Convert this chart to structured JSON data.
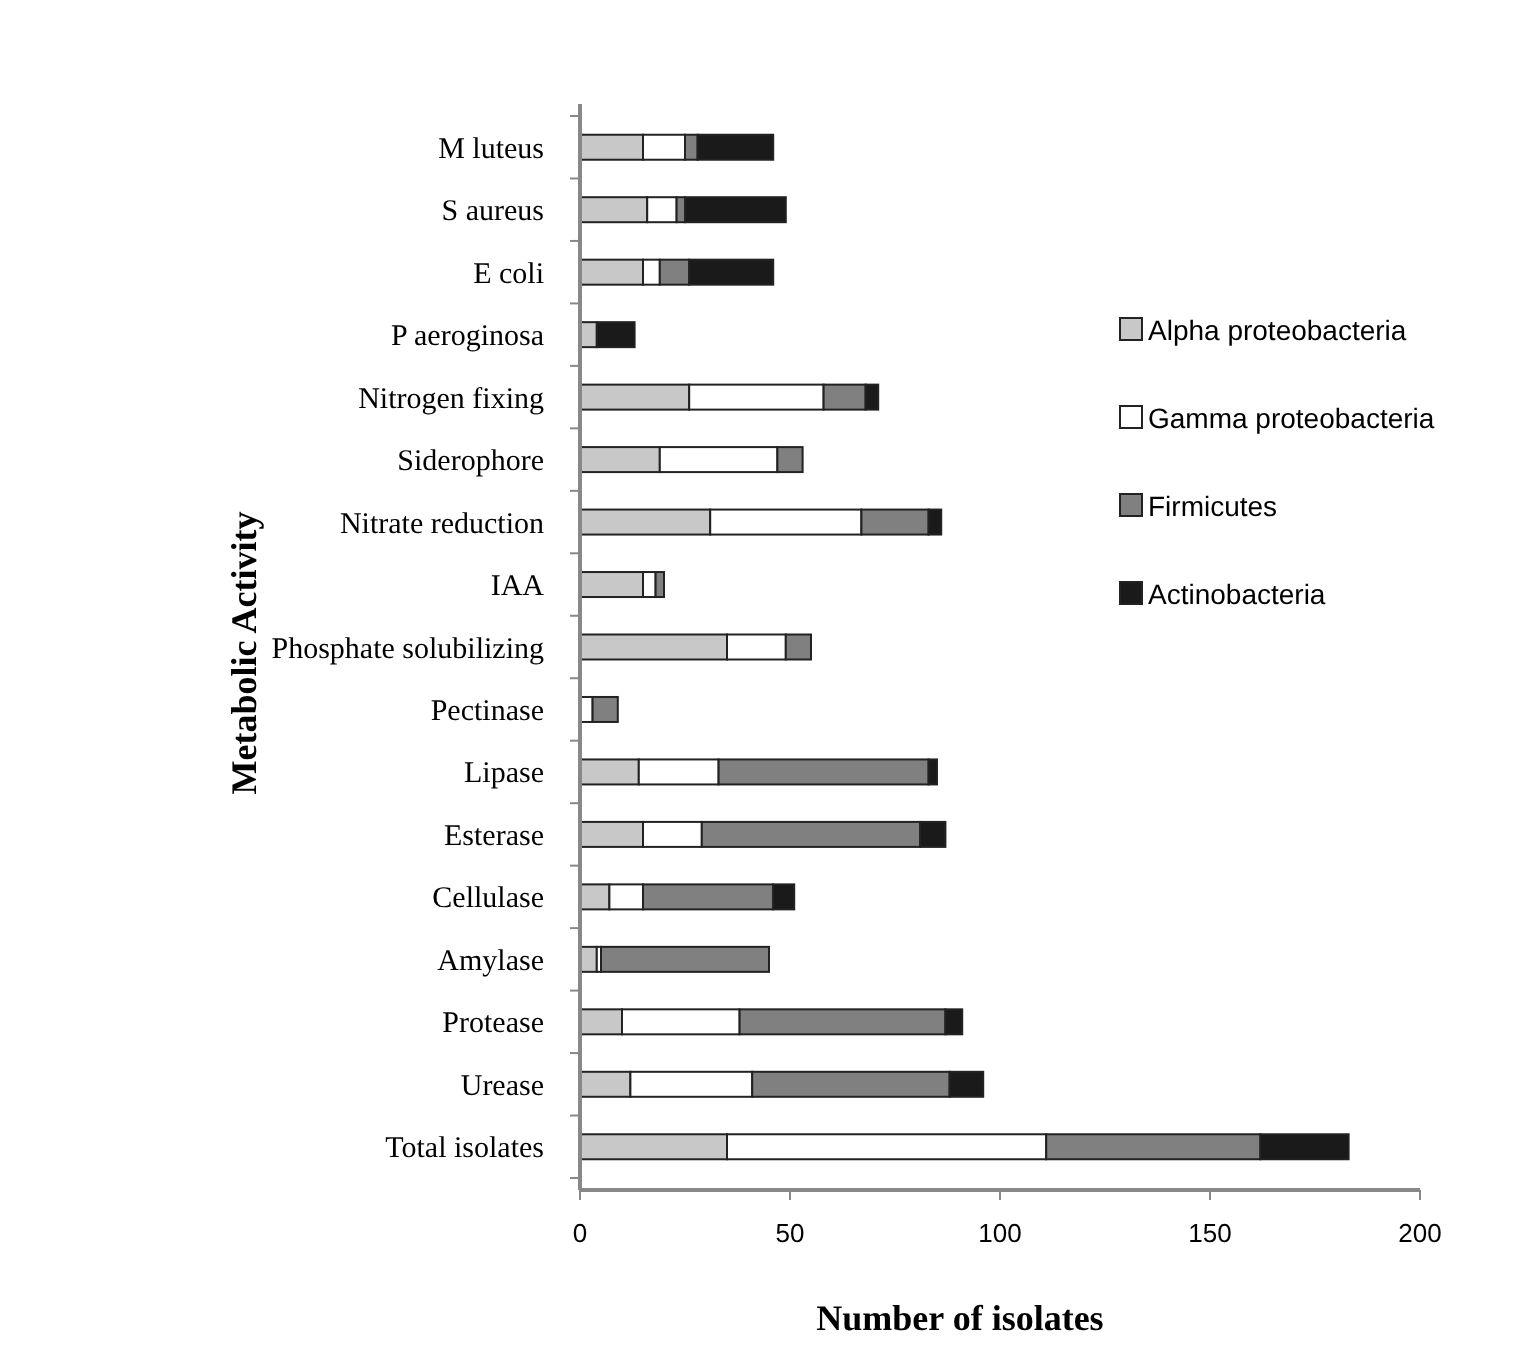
{
  "chart_data": {
    "type": "bar",
    "orientation": "horizontal",
    "stacked": true,
    "xlabel": "Number of isolates",
    "ylabel": "Metabolic Activity",
    "categories": [
      "M luteus",
      "S aureus",
      "E coli",
      "P aeroginosa",
      "Nitrogen fixing",
      "Siderophore",
      "Nitrate reduction",
      "IAA",
      "Phosphate solubilizing",
      "Pectinase",
      "Lipase",
      "Esterase",
      "Cellulase",
      "Amylase",
      "Protease",
      "Urease",
      "Total isolates"
    ],
    "series": [
      {
        "name": "Alpha proteobacteria",
        "color": "#c8c8c8",
        "values": [
          15,
          16,
          15,
          4,
          26,
          19,
          31,
          15,
          35,
          0,
          14,
          15,
          7,
          4,
          10,
          12,
          35
        ]
      },
      {
        "name": "Gamma proteobacteria",
        "color": "#ffffff",
        "values": [
          10,
          7,
          4,
          0,
          32,
          28,
          36,
          3,
          14,
          3,
          19,
          14,
          8,
          1,
          28,
          29,
          76
        ]
      },
      {
        "name": "Firmicutes",
        "color": "#808080",
        "values": [
          3,
          2,
          7,
          0,
          10,
          6,
          16,
          2,
          6,
          6,
          50,
          52,
          31,
          40,
          49,
          47,
          51
        ]
      },
      {
        "name": "Actinobacteria",
        "color": "#1a1a1a",
        "values": [
          18,
          24,
          20,
          9,
          3,
          0,
          3,
          0,
          0,
          0,
          2,
          6,
          5,
          0,
          4,
          8,
          21
        ]
      }
    ],
    "xlim": [
      0,
      200
    ],
    "xticks": [
      0,
      50,
      100,
      150,
      200
    ],
    "legend": "right",
    "grid": false
  }
}
